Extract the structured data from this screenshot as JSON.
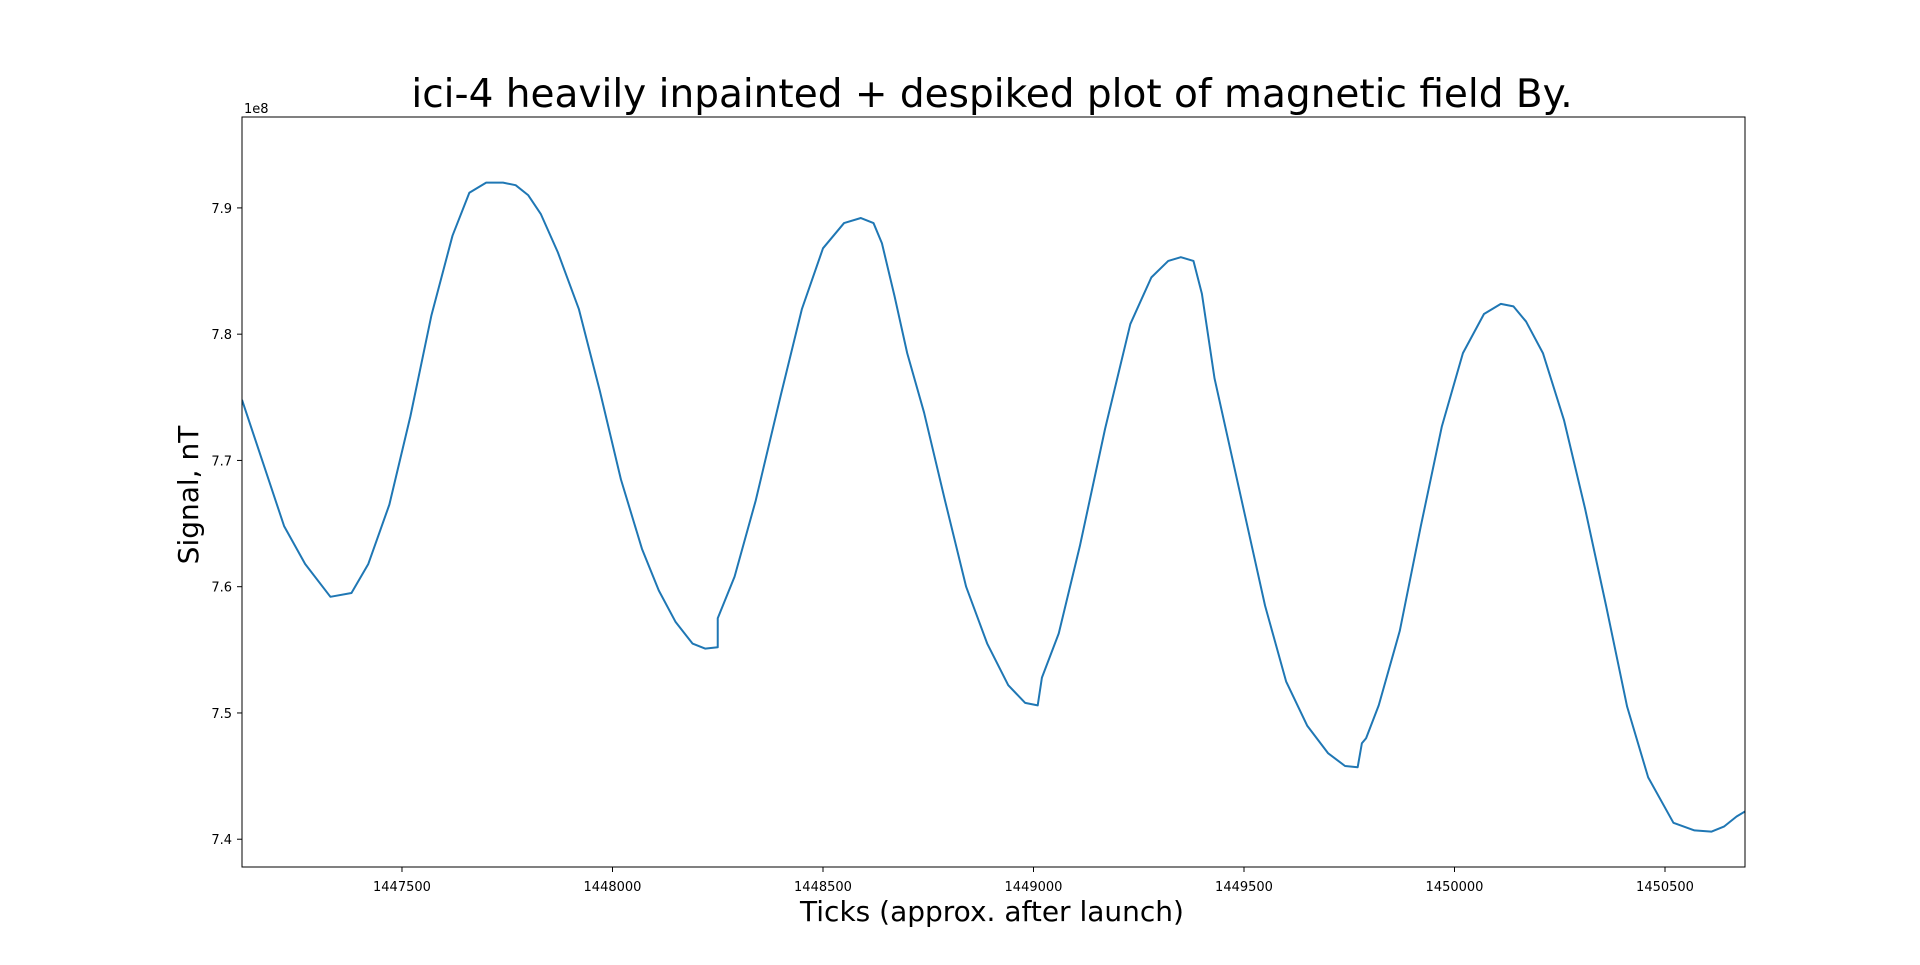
{
  "chart_data": {
    "type": "line",
    "title": "ici-4 heavily inpainted + despiked plot of magnetic field By.",
    "xlabel": "Ticks (approx. after launch)",
    "ylabel": "Signal, nT",
    "y_offset_label": "1e8",
    "xlim": [
      1447120,
      1450690
    ],
    "ylim": [
      7.378,
      7.972
    ],
    "x_ticks": [
      1447500,
      1448000,
      1448500,
      1449000,
      1449500,
      1450000,
      1450500
    ],
    "x_tick_labels": [
      "1447500",
      "1448000",
      "1448500",
      "1449000",
      "1449500",
      "1450000",
      "1450500"
    ],
    "y_ticks": [
      7.4,
      7.5,
      7.6,
      7.7,
      7.8,
      7.9
    ],
    "y_tick_labels": [
      "7.4",
      "7.5",
      "7.6",
      "7.7",
      "7.8",
      "7.9"
    ],
    "grid": false,
    "series": [
      {
        "color": "#1f77b4",
        "x": [
          1447120,
          1447170,
          1447220,
          1447270,
          1447330,
          1447380,
          1447420,
          1447470,
          1447520,
          1447570,
          1447620,
          1447660,
          1447700,
          1447740,
          1447770,
          1447800,
          1447830,
          1447870,
          1447920,
          1447970,
          1448020,
          1448070,
          1448110,
          1448150,
          1448190,
          1448220,
          1448250,
          1448250,
          1448290,
          1448340,
          1448400,
          1448450,
          1448500,
          1448550,
          1448590,
          1448620,
          1448640,
          1448670,
          1448700,
          1448740,
          1448790,
          1448840,
          1448890,
          1448940,
          1448980,
          1449010,
          1449020,
          1449060,
          1449110,
          1449170,
          1449230,
          1449280,
          1449320,
          1449350,
          1449380,
          1449400,
          1449430,
          1449460,
          1449500,
          1449550,
          1449600,
          1449650,
          1449700,
          1449740,
          1449770,
          1449780,
          1449790,
          1449820,
          1449870,
          1449920,
          1449970,
          1450020,
          1450070,
          1450110,
          1450140,
          1450170,
          1450210,
          1450260,
          1450310,
          1450360,
          1450410,
          1450460,
          1450520,
          1450570,
          1450610,
          1450640,
          1450670,
          1450690
        ],
        "y": [
          7.748,
          7.698,
          7.648,
          7.618,
          7.592,
          7.595,
          7.618,
          7.665,
          7.735,
          7.815,
          7.878,
          7.912,
          7.92,
          7.92,
          7.918,
          7.91,
          7.895,
          7.865,
          7.82,
          7.755,
          7.685,
          7.63,
          7.597,
          7.572,
          7.555,
          7.551,
          7.552,
          7.575,
          7.608,
          7.668,
          7.752,
          7.82,
          7.868,
          7.888,
          7.892,
          7.888,
          7.872,
          7.83,
          7.785,
          7.738,
          7.668,
          7.6,
          7.555,
          7.522,
          7.508,
          7.506,
          7.528,
          7.563,
          7.632,
          7.725,
          7.808,
          7.845,
          7.858,
          7.861,
          7.858,
          7.832,
          7.765,
          7.72,
          7.66,
          7.585,
          7.525,
          7.49,
          7.468,
          7.458,
          7.457,
          7.476,
          7.48,
          7.506,
          7.565,
          7.648,
          7.727,
          7.785,
          7.816,
          7.824,
          7.822,
          7.81,
          7.785,
          7.732,
          7.662,
          7.585,
          7.505,
          7.449,
          7.413,
          7.407,
          7.406,
          7.41,
          7.418,
          7.422
        ]
      }
    ]
  }
}
